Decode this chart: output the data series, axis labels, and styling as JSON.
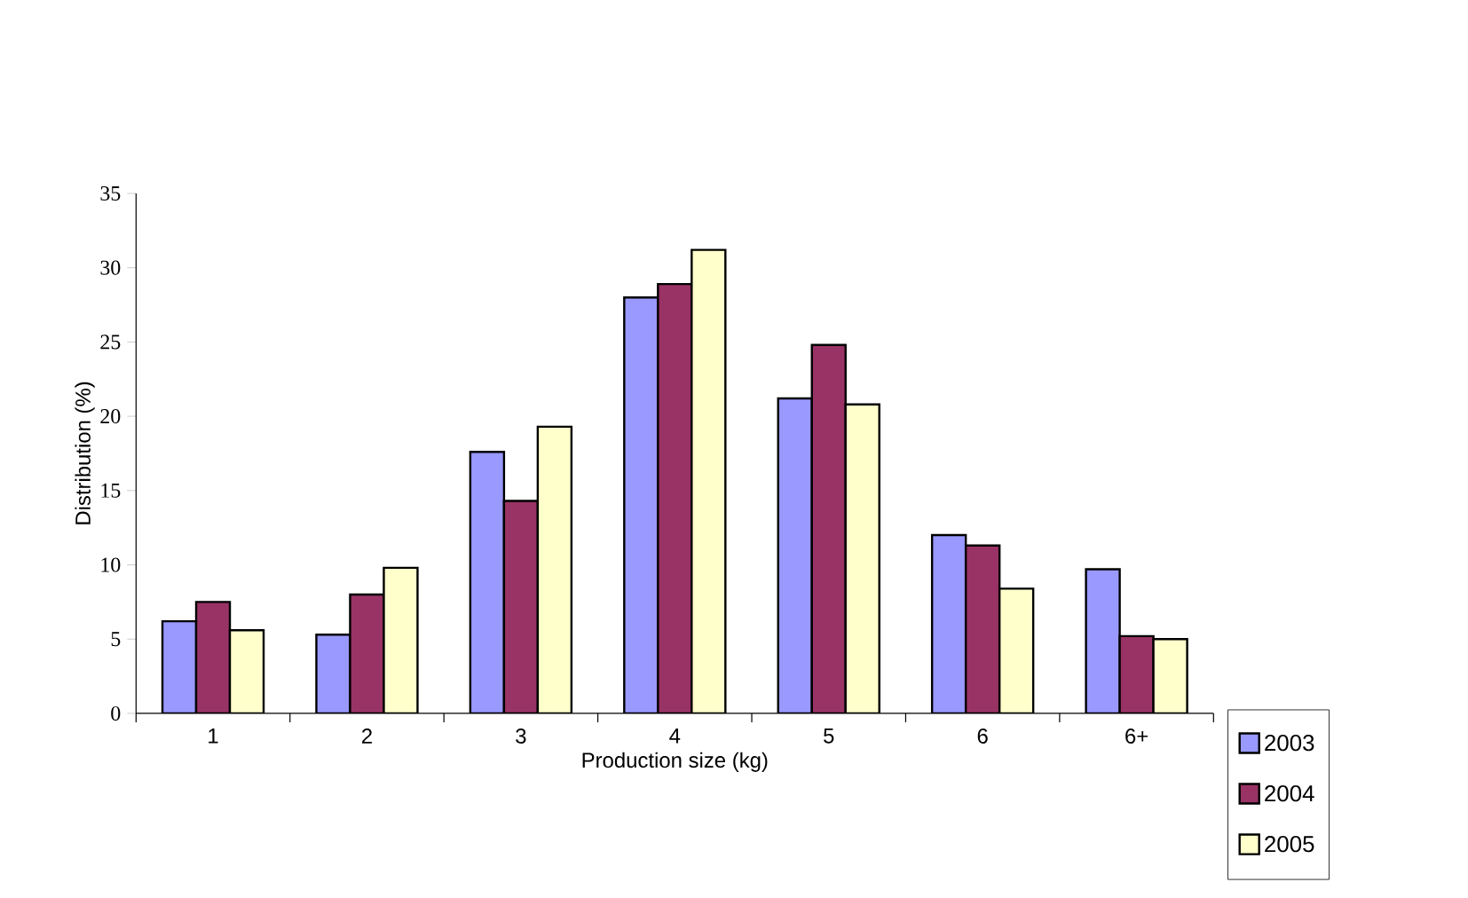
{
  "chart_data": {
    "type": "bar",
    "xlabel": "Production size (kg)",
    "ylabel": "Distribution (%)",
    "categories": [
      "1",
      "2",
      "3",
      "4",
      "5",
      "6",
      "6+"
    ],
    "series": [
      {
        "name": "2003",
        "color": "#9999ff",
        "values": [
          6.2,
          5.3,
          17.6,
          28.0,
          21.2,
          12.0,
          9.7
        ]
      },
      {
        "name": "2004",
        "color": "#993366",
        "values": [
          7.5,
          8.0,
          14.3,
          28.9,
          24.8,
          11.3,
          5.2
        ]
      },
      {
        "name": "2005",
        "color": "#ffffcc",
        "values": [
          5.6,
          9.8,
          19.3,
          31.2,
          20.8,
          8.4,
          5.0
        ]
      }
    ],
    "ylim": [
      0,
      35
    ],
    "yticks": [
      0,
      5,
      10,
      15,
      20,
      25,
      30,
      35
    ],
    "grid": false,
    "legend": "right"
  }
}
